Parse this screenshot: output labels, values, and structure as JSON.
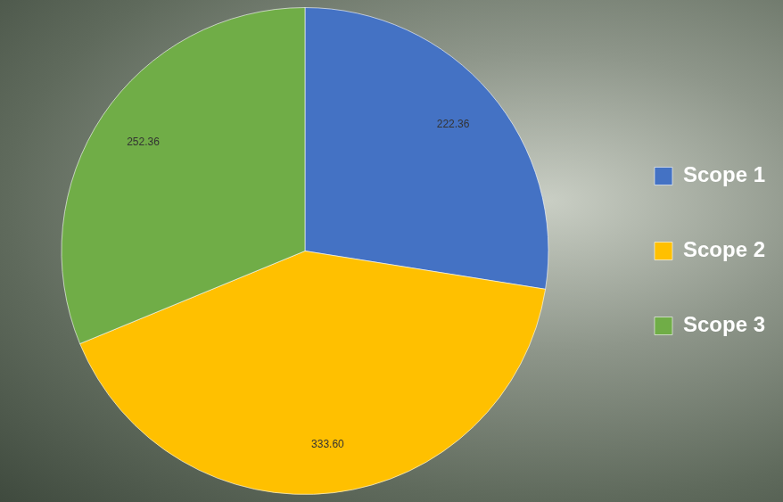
{
  "chart_data": {
    "type": "pie",
    "categories": [
      "Scope 1",
      "Scope 2",
      "Scope 3"
    ],
    "values": [
      222.36,
      333.6,
      252.36
    ],
    "value_labels": [
      "222.36",
      "333.60",
      "252.36"
    ],
    "colors": [
      "#4472c4",
      "#ffc000",
      "#70ad47"
    ],
    "legend": "right",
    "data_labels": true
  }
}
